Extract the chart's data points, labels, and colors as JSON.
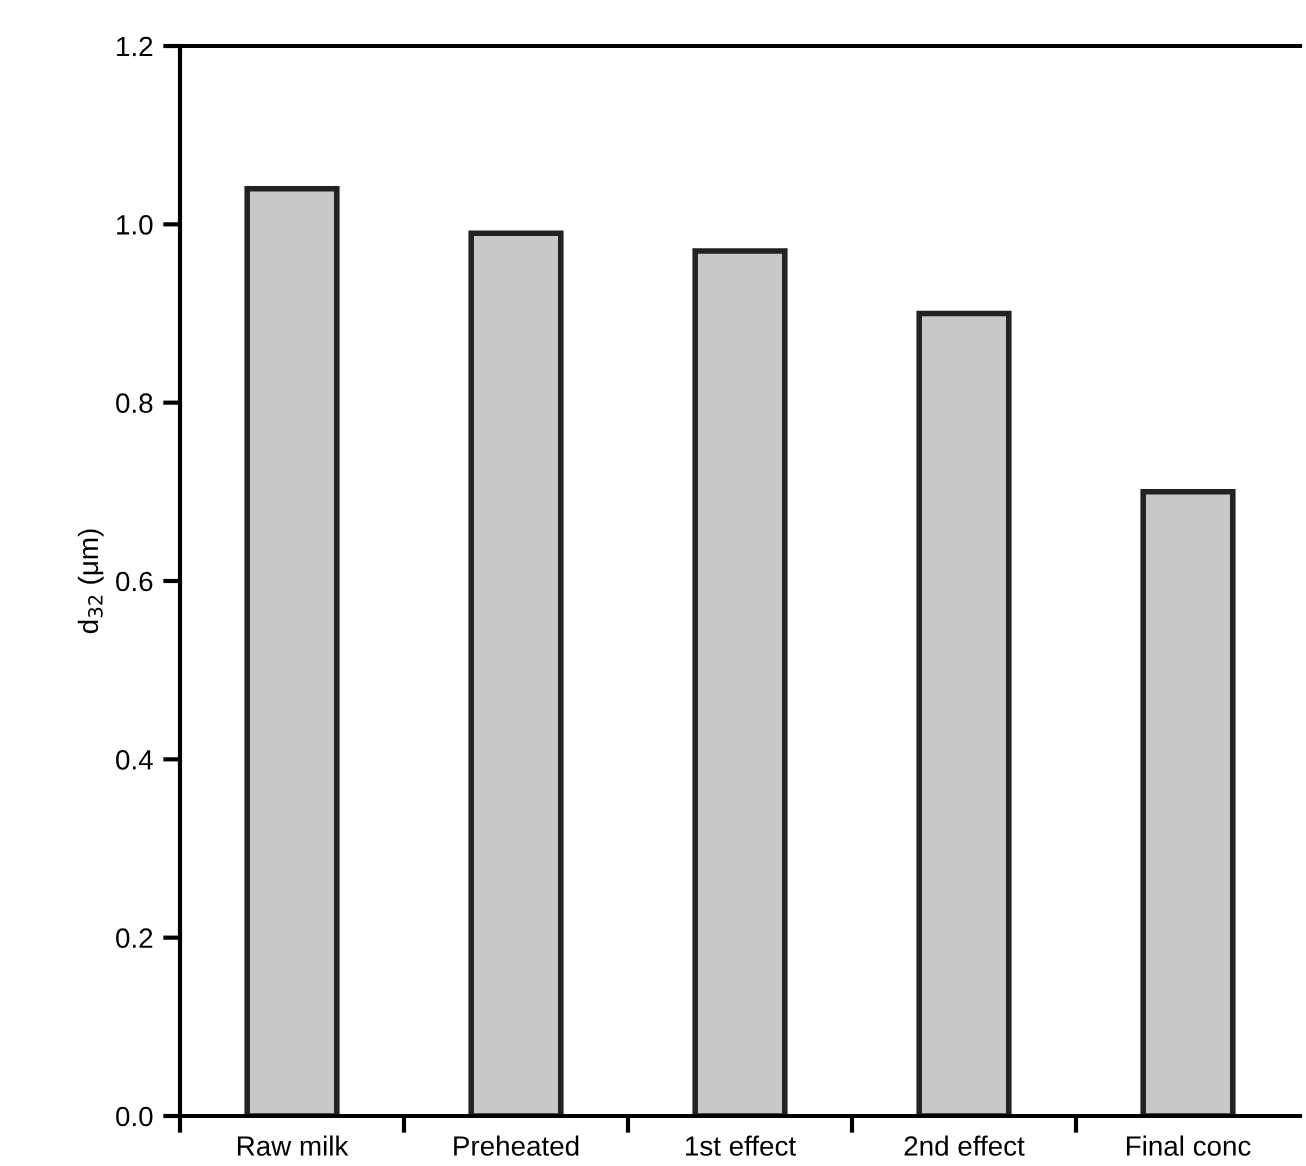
{
  "chart_data": {
    "type": "bar",
    "ylabel": "d$_{32}$ (μm)",
    "categories": [
      "Raw milk",
      "Preheated",
      "1st effect",
      "2nd effect",
      "Final conc"
    ],
    "values": [
      1.04,
      0.99,
      0.97,
      0.9,
      0.7
    ],
    "color": "#c8c8c8",
    "ylim": [
      0,
      1.2
    ],
    "yticks": [
      {
        "value": 0,
        "label": "0.0"
      },
      0.2,
      0.4,
      0.6,
      0.8,
      {
        "value": 1,
        "label": "1.0"
      },
      1.2
    ],
    "grid": false
  }
}
